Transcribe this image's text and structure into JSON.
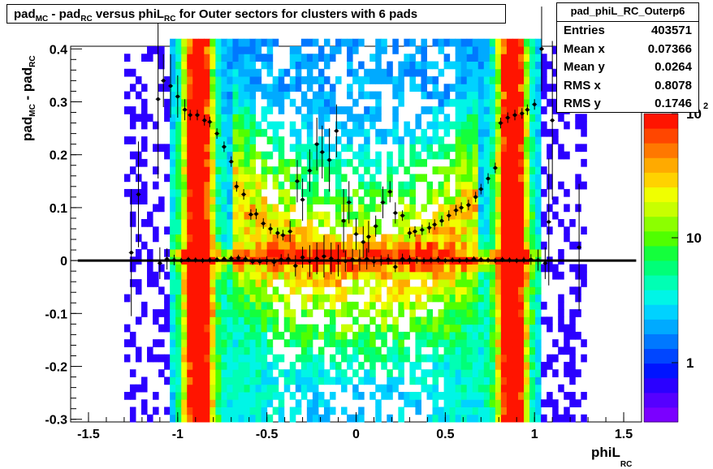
{
  "chart_data": {
    "type": "heatmap",
    "title_parts": [
      {
        "text": "pad",
        "sub": false
      },
      {
        "text": "MC",
        "sub": true
      },
      {
        "text": " - pad",
        "sub": false
      },
      {
        "text": "RC",
        "sub": true
      },
      {
        "text": " versus phiL",
        "sub": false
      },
      {
        "text": "RC",
        "sub": true
      },
      {
        "text": " for Outer sectors for clusters with 6 pads",
        "sub": false
      }
    ],
    "xlabel_main": "phiL",
    "xlabel_sub": "RC",
    "ylabel_parts": [
      {
        "text": "pad",
        "sub": false
      },
      {
        "text": "MC",
        "sub": true
      },
      {
        "text": " - pad",
        "sub": false
      },
      {
        "text": "RC",
        "sub": true
      }
    ],
    "xlim": [
      -1.6,
      1.6
    ],
    "ylim": [
      -0.305,
      0.405
    ],
    "x_ticks": [
      -1.5,
      -1,
      -0.5,
      0,
      0.5,
      1,
      1.5
    ],
    "x_tick_labels": [
      "-1.5",
      "-1",
      "-0.5",
      "0",
      "0.5",
      "1",
      "1.5"
    ],
    "y_ticks": [
      -0.3,
      -0.2,
      -0.1,
      0,
      0.1,
      0.2,
      0.3,
      0.4
    ],
    "y_tick_labels": [
      "-0.3",
      "-0.2",
      "-0.1",
      "0",
      "0.1",
      "0.2",
      "0.3",
      "0.4"
    ],
    "colorbar": {
      "log_scale": true,
      "tick_labels": [
        "1",
        "10",
        "10"
      ],
      "top_exponent": "2",
      "colors": [
        "#7b00ff",
        "#5500ff",
        "#2b00ff",
        "#0014ff",
        "#0046ff",
        "#0078ff",
        "#00aaff",
        "#00d2ff",
        "#00f5e6",
        "#00ffb4",
        "#00ff78",
        "#14ff3c",
        "#50ff00",
        "#8cff00",
        "#c8ff00",
        "#f0ff00",
        "#ffd200",
        "#ffaa00",
        "#ff7800",
        "#ff4600",
        "#ff1400"
      ]
    },
    "stats": {
      "name": "pad_phiL_RC_Outerp6",
      "rows": [
        {
          "label": "Entries",
          "value": "403571"
        },
        {
          "label": "Mean x",
          "value": "0.07366"
        },
        {
          "label": "Mean y",
          "value": "0.0264"
        },
        {
          "label": "RMS x",
          "value": "0.8078"
        },
        {
          "label": "RMS y",
          "value": "0.1746"
        }
      ]
    },
    "profile_upper": {
      "x": [
        -1.26,
        -1.22,
        -1.11,
        -1.08,
        -1.04,
        -1.0,
        -0.96,
        -0.93,
        -0.89,
        -0.85,
        -0.82,
        -0.78,
        -0.74,
        -0.7,
        -0.67,
        -0.63,
        -0.59,
        -0.56,
        -0.52,
        -0.48,
        -0.44,
        -0.41,
        -0.37,
        -0.33,
        -0.3,
        -0.26,
        -0.22,
        -0.19,
        -0.15,
        -0.11,
        -0.07,
        -0.04,
        0.0,
        0.04,
        0.07,
        0.11,
        0.15,
        0.19,
        0.22,
        0.26,
        0.3,
        0.33,
        0.37,
        0.41,
        0.44,
        0.48,
        0.52,
        0.56,
        0.59,
        0.63,
        0.67,
        0.7,
        0.74,
        0.78,
        0.81,
        0.85,
        0.89,
        0.93,
        0.96,
        1.0,
        1.04,
        1.08,
        1.1,
        1.25
      ],
      "y": [
        0.015,
        0.125,
        0.305,
        0.34,
        0.33,
        0.31,
        0.285,
        0.275,
        0.275,
        0.265,
        0.262,
        0.24,
        0.215,
        0.187,
        0.14,
        0.125,
        0.087,
        0.088,
        0.07,
        0.06,
        0.052,
        0.048,
        0.055,
        0.15,
        0.115,
        0.17,
        0.22,
        0.205,
        0.19,
        0.245,
        0.075,
        0.11,
        0.05,
        0.035,
        0.045,
        0.065,
        0.11,
        0.13,
        0.09,
        0.085,
        0.052,
        0.055,
        0.058,
        0.062,
        0.068,
        0.075,
        0.085,
        0.095,
        0.1,
        0.105,
        0.12,
        0.135,
        0.155,
        0.175,
        0.26,
        0.27,
        0.275,
        0.278,
        0.285,
        0.295,
        0.4,
        0.073,
        0.265,
        0.025
      ],
      "err": [
        0.12,
        0.1,
        0.15,
        0.05,
        0.06,
        0.04,
        0.02,
        0.01,
        0.01,
        0.01,
        0.01,
        0.01,
        0.01,
        0.01,
        0.01,
        0.01,
        0.01,
        0.01,
        0.01,
        0.01,
        0.01,
        0.01,
        0.02,
        0.04,
        0.04,
        0.04,
        0.05,
        0.05,
        0.06,
        0.05,
        0.06,
        0.04,
        0.03,
        0.03,
        0.03,
        0.02,
        0.03,
        0.02,
        0.02,
        0.01,
        0.01,
        0.01,
        0.01,
        0.01,
        0.01,
        0.01,
        0.01,
        0.01,
        0.01,
        0.01,
        0.01,
        0.01,
        0.01,
        0.01,
        0.01,
        0.01,
        0.01,
        0.01,
        0.01,
        0.01,
        0.08,
        0.12,
        0.15,
        0.12
      ]
    },
    "profile_zero": {
      "x": [
        -1.1,
        -1.06,
        -1.02,
        -0.98,
        -0.94,
        -0.9,
        -0.86,
        -0.82,
        -0.78,
        -0.74,
        -0.7,
        -0.66,
        -0.62,
        -0.58,
        -0.54,
        -0.5,
        -0.46,
        -0.42,
        -0.38,
        -0.34,
        -0.3,
        -0.26,
        -0.22,
        -0.18,
        -0.14,
        -0.1,
        -0.06,
        -0.02,
        0.02,
        0.06,
        0.1,
        0.14,
        0.18,
        0.22,
        0.26,
        0.3,
        0.34,
        0.38,
        0.42,
        0.46,
        0.5,
        0.54,
        0.58,
        0.62,
        0.66,
        0.7,
        0.74,
        0.78,
        0.82,
        0.86,
        0.9,
        0.94,
        0.98,
        1.02,
        1.06
      ],
      "y": [
        -0.005,
        0.003,
        0.001,
        0.0,
        0.002,
        0.001,
        0.0,
        0.001,
        0.002,
        0.003,
        0.004,
        0.005,
        0.003,
        -0.002,
        -0.002,
        0.0,
        -0.003,
        0.002,
        0.003,
        -0.01,
        0.006,
        -0.001,
        0.004,
        0.008,
        0.004,
        0.0,
        -0.001,
        0.002,
        0.001,
        0.003,
        -0.002,
        0.0,
        0.002,
        -0.012,
        0.003,
        0.002,
        0.001,
        0.0,
        0.001,
        0.002,
        0.0,
        0.001,
        0.0,
        0.001,
        0.003,
        0.002,
        0.001,
        0.0,
        0.002,
        0.001,
        0.0,
        0.001,
        0.002,
        0.001,
        -0.005
      ],
      "err": [
        0.03,
        0.02,
        0.01,
        0.005,
        0.005,
        0.005,
        0.005,
        0.005,
        0.005,
        0.005,
        0.005,
        0.006,
        0.006,
        0.006,
        0.007,
        0.008,
        0.008,
        0.01,
        0.01,
        0.02,
        0.02,
        0.03,
        0.03,
        0.04,
        0.03,
        0.03,
        0.02,
        0.02,
        0.02,
        0.02,
        0.01,
        0.01,
        0.01,
        0.01,
        0.01,
        0.008,
        0.007,
        0.006,
        0.006,
        0.006,
        0.005,
        0.005,
        0.005,
        0.005,
        0.005,
        0.005,
        0.005,
        0.005,
        0.005,
        0.005,
        0.005,
        0.006,
        0.01,
        0.02,
        0.03
      ]
    }
  }
}
